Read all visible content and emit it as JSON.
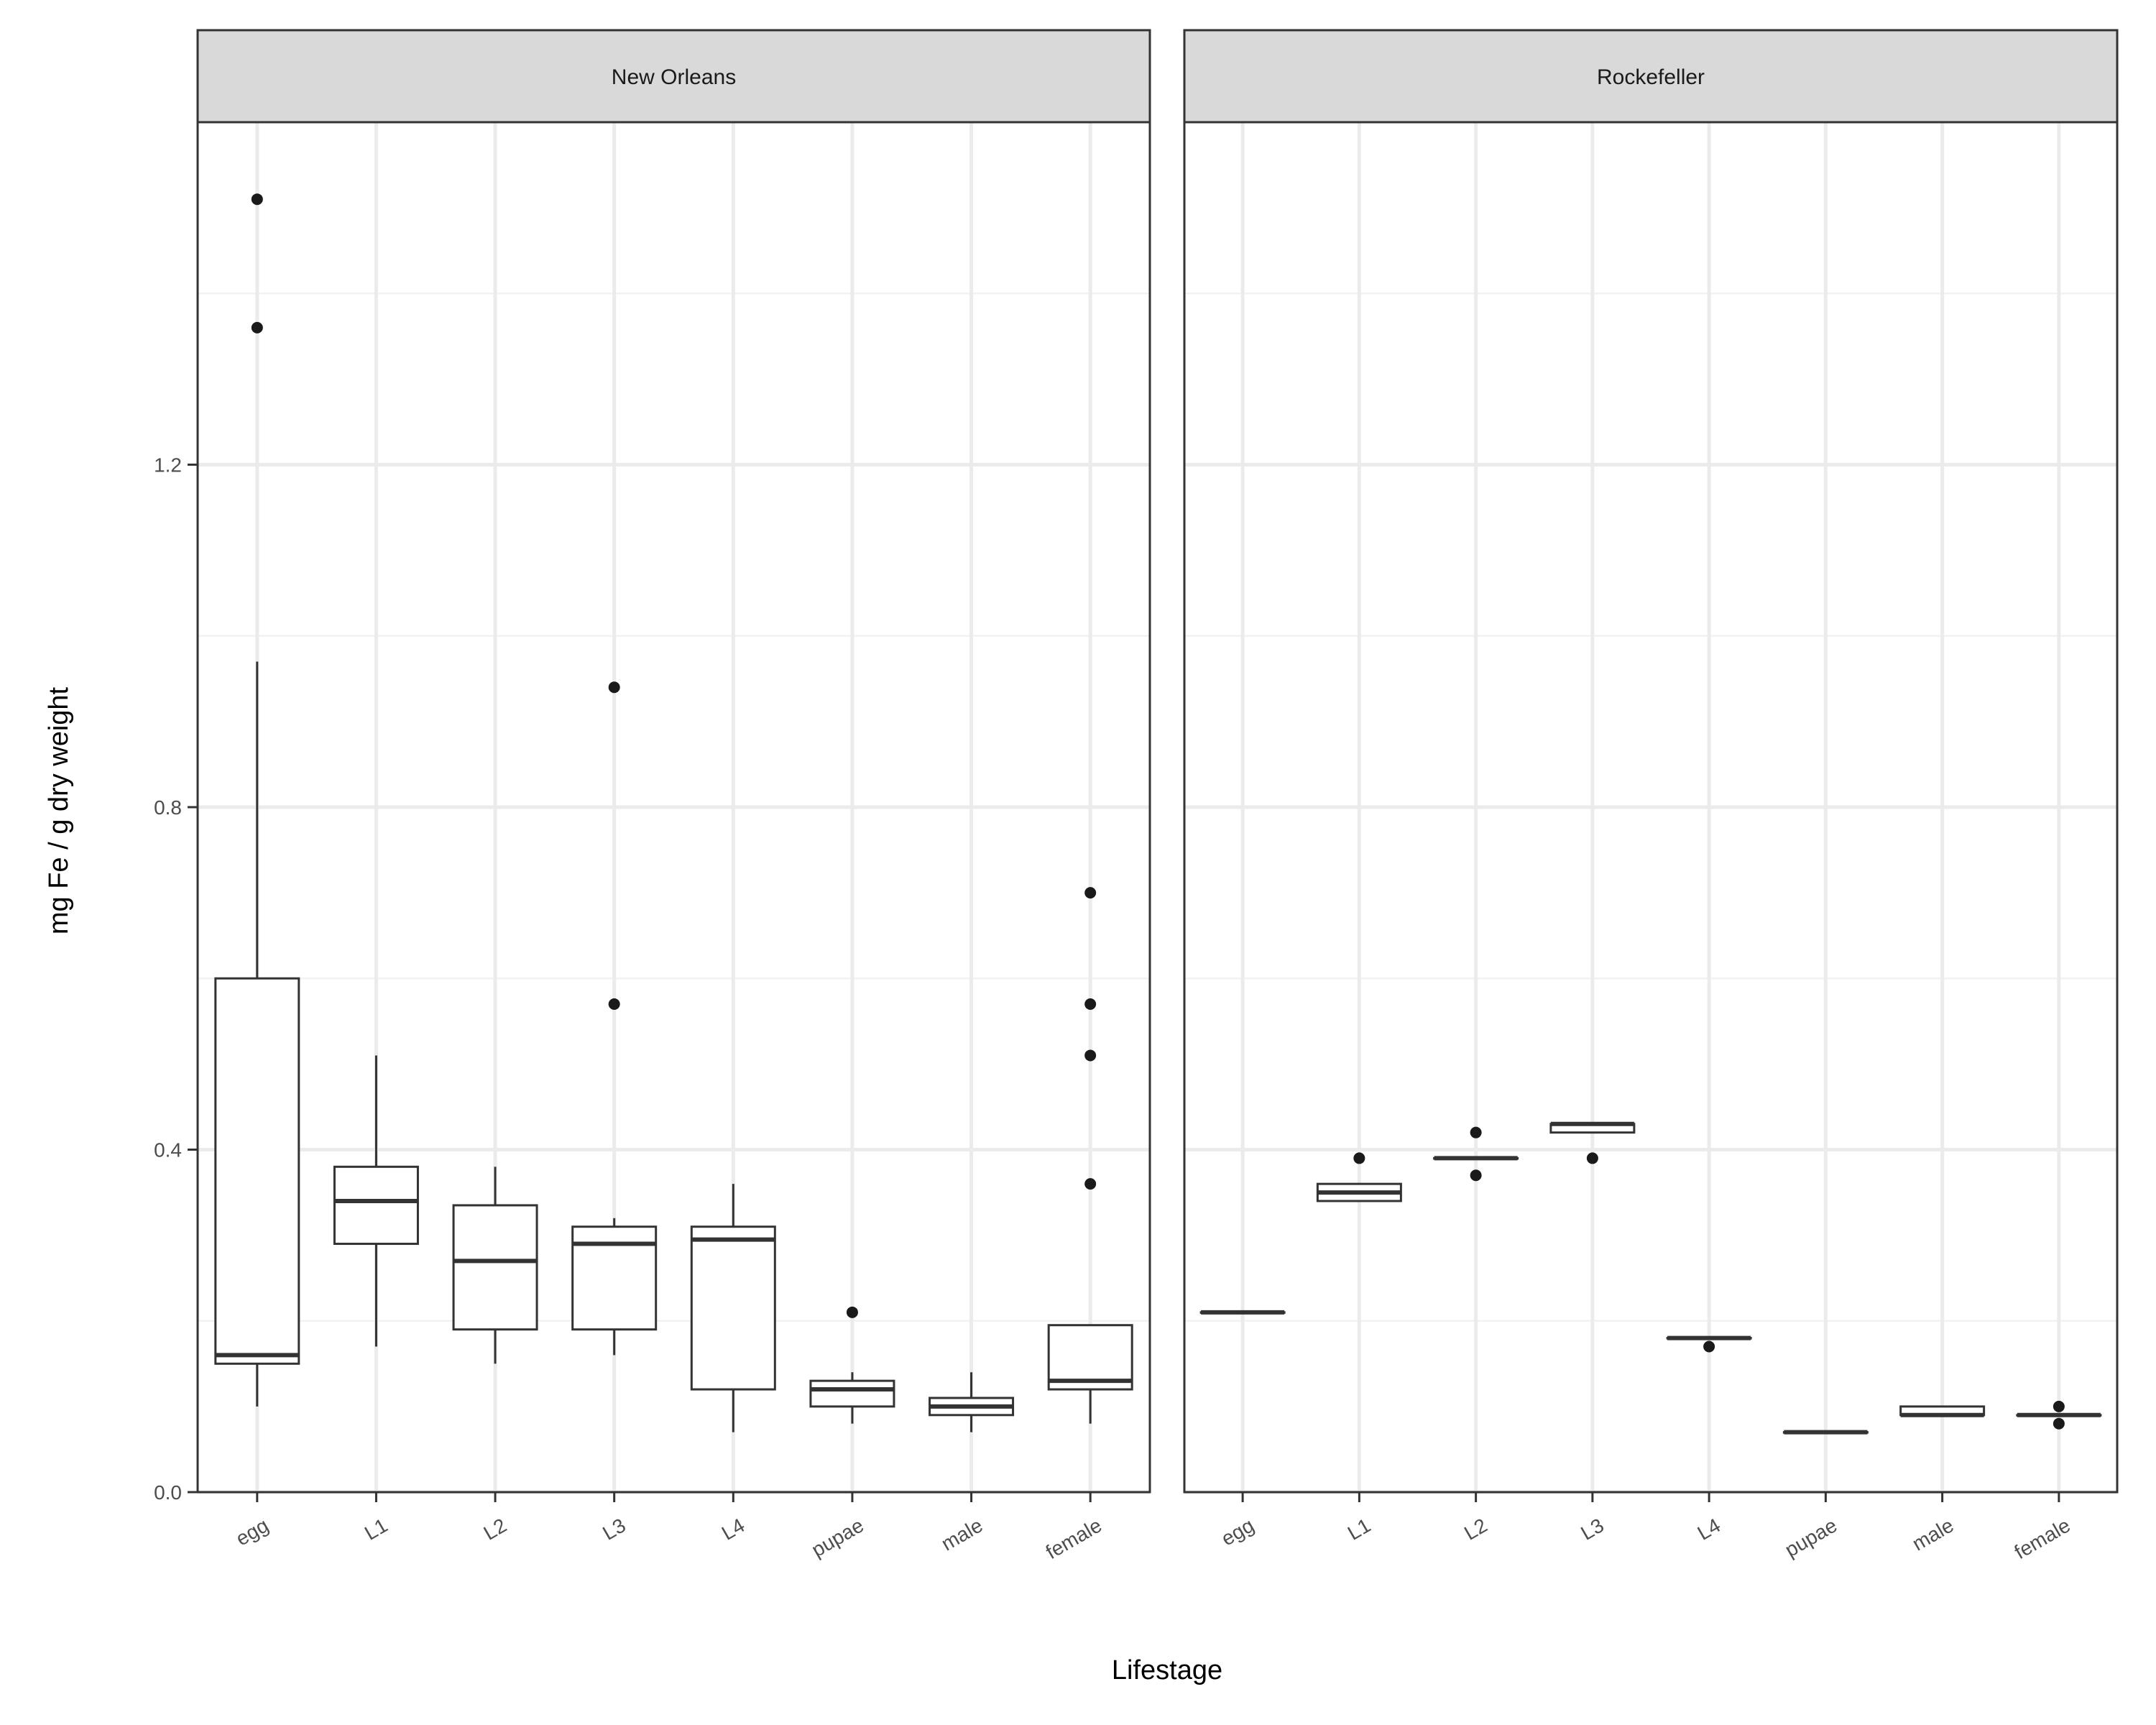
{
  "chart_data": {
    "type": "boxplot",
    "xlabel": "Lifestage",
    "ylabel": "mg Fe / g dry weight",
    "ylim": [
      0,
      1.6
    ],
    "yticks": [
      0.0,
      0.4,
      0.8,
      1.2
    ],
    "ytick_labels": [
      "0.0",
      "0.4",
      "0.8",
      "1.2"
    ],
    "categories": [
      "egg",
      "L1",
      "L2",
      "L3",
      "L4",
      "pupae",
      "male",
      "female"
    ],
    "grid": true,
    "panels": [
      {
        "title": "New Orleans",
        "boxes": [
          {
            "category": "egg",
            "lower_whisker": 0.1,
            "q1": 0.15,
            "median": 0.16,
            "q3": 0.6,
            "upper_whisker": 0.97,
            "outliers": [
              1.36,
              1.51
            ]
          },
          {
            "category": "L1",
            "lower_whisker": 0.17,
            "q1": 0.29,
            "median": 0.34,
            "q3": 0.38,
            "upper_whisker": 0.51,
            "outliers": []
          },
          {
            "category": "L2",
            "lower_whisker": 0.15,
            "q1": 0.19,
            "median": 0.27,
            "q3": 0.335,
            "upper_whisker": 0.38,
            "outliers": []
          },
          {
            "category": "L3",
            "lower_whisker": 0.16,
            "q1": 0.19,
            "median": 0.29,
            "q3": 0.31,
            "upper_whisker": 0.32,
            "outliers": [
              0.57,
              0.94
            ]
          },
          {
            "category": "L4",
            "lower_whisker": 0.07,
            "q1": 0.12,
            "median": 0.295,
            "q3": 0.31,
            "upper_whisker": 0.36,
            "outliers": []
          },
          {
            "category": "pupae",
            "lower_whisker": 0.08,
            "q1": 0.1,
            "median": 0.12,
            "q3": 0.13,
            "upper_whisker": 0.14,
            "outliers": [
              0.21
            ]
          },
          {
            "category": "male",
            "lower_whisker": 0.07,
            "q1": 0.09,
            "median": 0.1,
            "q3": 0.11,
            "upper_whisker": 0.14,
            "outliers": []
          },
          {
            "category": "female",
            "lower_whisker": 0.08,
            "q1": 0.12,
            "median": 0.13,
            "q3": 0.195,
            "upper_whisker": 0.195,
            "outliers": [
              0.36,
              0.51,
              0.57,
              0.7
            ]
          }
        ]
      },
      {
        "title": "Rockefeller",
        "boxes": [
          {
            "category": "egg",
            "lower_whisker": 0.21,
            "q1": 0.21,
            "median": 0.21,
            "q3": 0.21,
            "upper_whisker": 0.21,
            "outliers": []
          },
          {
            "category": "L1",
            "lower_whisker": 0.34,
            "q1": 0.34,
            "median": 0.35,
            "q3": 0.36,
            "upper_whisker": 0.36,
            "outliers": [
              0.39
            ]
          },
          {
            "category": "L2",
            "lower_whisker": 0.39,
            "q1": 0.39,
            "median": 0.39,
            "q3": 0.39,
            "upper_whisker": 0.39,
            "outliers": [
              0.37,
              0.42
            ]
          },
          {
            "category": "L3",
            "lower_whisker": 0.42,
            "q1": 0.42,
            "median": 0.43,
            "q3": 0.43,
            "upper_whisker": 0.43,
            "outliers": [
              0.39
            ]
          },
          {
            "category": "L4",
            "lower_whisker": 0.18,
            "q1": 0.18,
            "median": 0.18,
            "q3": 0.18,
            "upper_whisker": 0.18,
            "outliers": [
              0.17
            ]
          },
          {
            "category": "pupae",
            "lower_whisker": 0.07,
            "q1": 0.07,
            "median": 0.07,
            "q3": 0.07,
            "upper_whisker": 0.07,
            "outliers": []
          },
          {
            "category": "male",
            "lower_whisker": 0.09,
            "q1": 0.09,
            "median": 0.09,
            "q3": 0.1,
            "upper_whisker": 0.1,
            "outliers": []
          },
          {
            "category": "female",
            "lower_whisker": 0.09,
            "q1": 0.09,
            "median": 0.09,
            "q3": 0.09,
            "upper_whisker": 0.09,
            "outliers": [
              0.08,
              0.1
            ]
          }
        ]
      }
    ]
  },
  "colors": {
    "panel_border": "#333333",
    "strip_fill": "#d9d9d9",
    "grid_major": "#ebebeb",
    "grid_minor": "#f2f2f2",
    "box_line": "#333333",
    "box_fill": "#ffffff",
    "outlier": "#1a1a1a"
  }
}
